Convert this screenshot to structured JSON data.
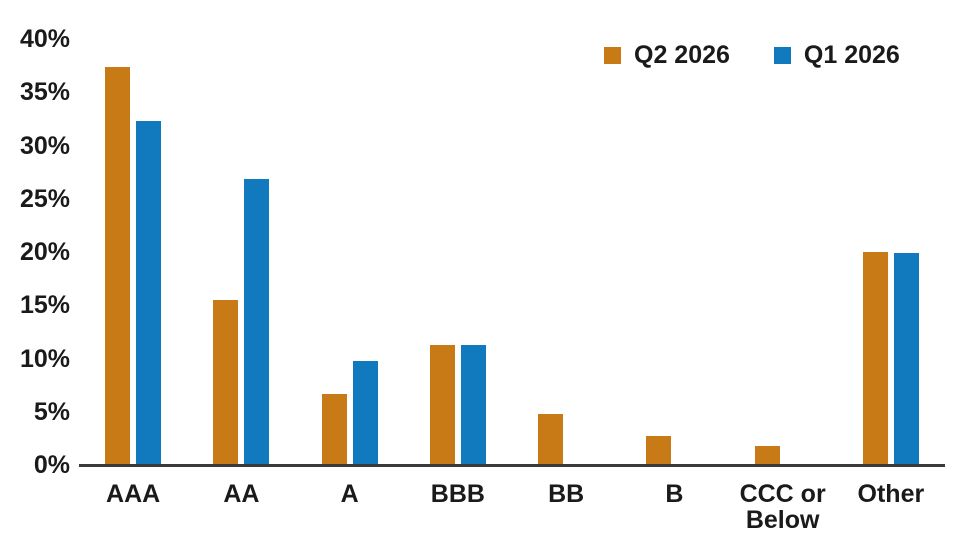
{
  "chart_data": {
    "type": "bar",
    "title": "",
    "categories": [
      "AAA",
      "AA",
      "A",
      "BBB",
      "BB",
      "B",
      "CCC or\nBelow",
      "Other"
    ],
    "series": [
      {
        "name": "Q2 2026",
        "color": "#C77A16",
        "values": [
          37.4,
          15.5,
          6.7,
          11.3,
          4.8,
          2.7,
          1.8,
          20.0
        ]
      },
      {
        "name": "Q1 2026",
        "color": "#1179BE",
        "values": [
          32.3,
          26.9,
          9.8,
          11.3,
          0,
          0,
          0,
          19.9
        ]
      }
    ],
    "y_ticks": [
      "40%",
      "35%",
      "30%",
      "25%",
      "20%",
      "15%",
      "10%",
      "5%",
      "0%"
    ],
    "ylim": [
      0,
      40
    ],
    "grid": false,
    "legend_position": "top-right",
    "axis_line_color": "#3A3A3A",
    "text_color": "#1A1A1A"
  }
}
